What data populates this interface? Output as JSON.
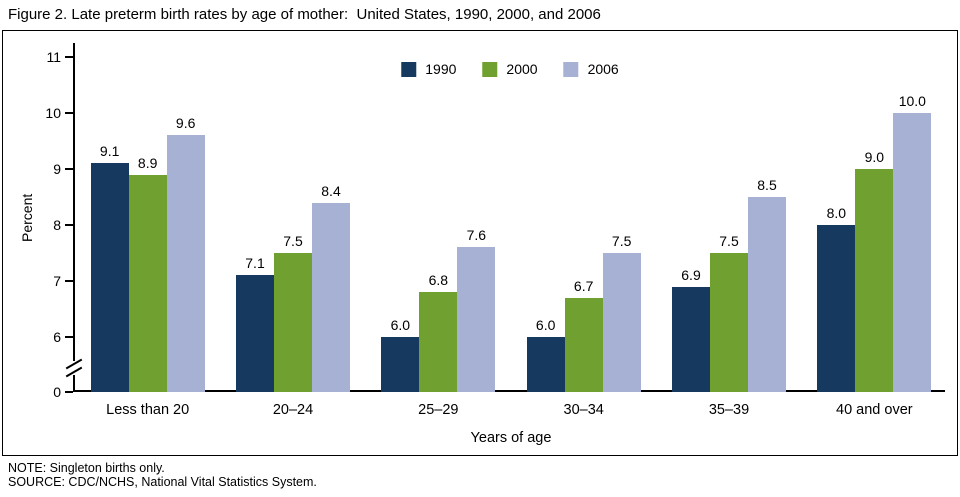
{
  "title": "Figure 2. Late preterm birth rates by age of mother:  United States, 1990, 2000, and 2006",
  "note": "NOTE: Singleton births only.",
  "source": "SOURCE: CDC/NCHS, National Vital Statistics System.",
  "chart_data": {
    "type": "bar",
    "title": "Figure 2. Late preterm birth rates by age of mother: United States, 1990, 2000, and 2006",
    "categories": [
      "Less than 20",
      "20–24",
      "25–29",
      "30–34",
      "35–39",
      "40 and over"
    ],
    "series": [
      {
        "name": "1990",
        "color": "#16395f",
        "values": [
          9.1,
          7.1,
          6.0,
          6.0,
          6.9,
          8.0
        ]
      },
      {
        "name": "2000",
        "color": "#70a02f",
        "values": [
          8.9,
          7.5,
          6.8,
          6.7,
          7.5,
          9.0
        ]
      },
      {
        "name": "2006",
        "color": "#a7b1d3",
        "values": [
          9.6,
          8.4,
          7.6,
          7.5,
          8.5,
          10.0
        ]
      }
    ],
    "xlabel": "Years of age",
    "ylabel": "Percent",
    "y_ticks": [
      0,
      6,
      7,
      8,
      9,
      10,
      11
    ],
    "ylim_display": [
      6,
      11
    ],
    "axis_break": true,
    "value_labels": true,
    "grid": false,
    "legend_position": "top-center"
  }
}
